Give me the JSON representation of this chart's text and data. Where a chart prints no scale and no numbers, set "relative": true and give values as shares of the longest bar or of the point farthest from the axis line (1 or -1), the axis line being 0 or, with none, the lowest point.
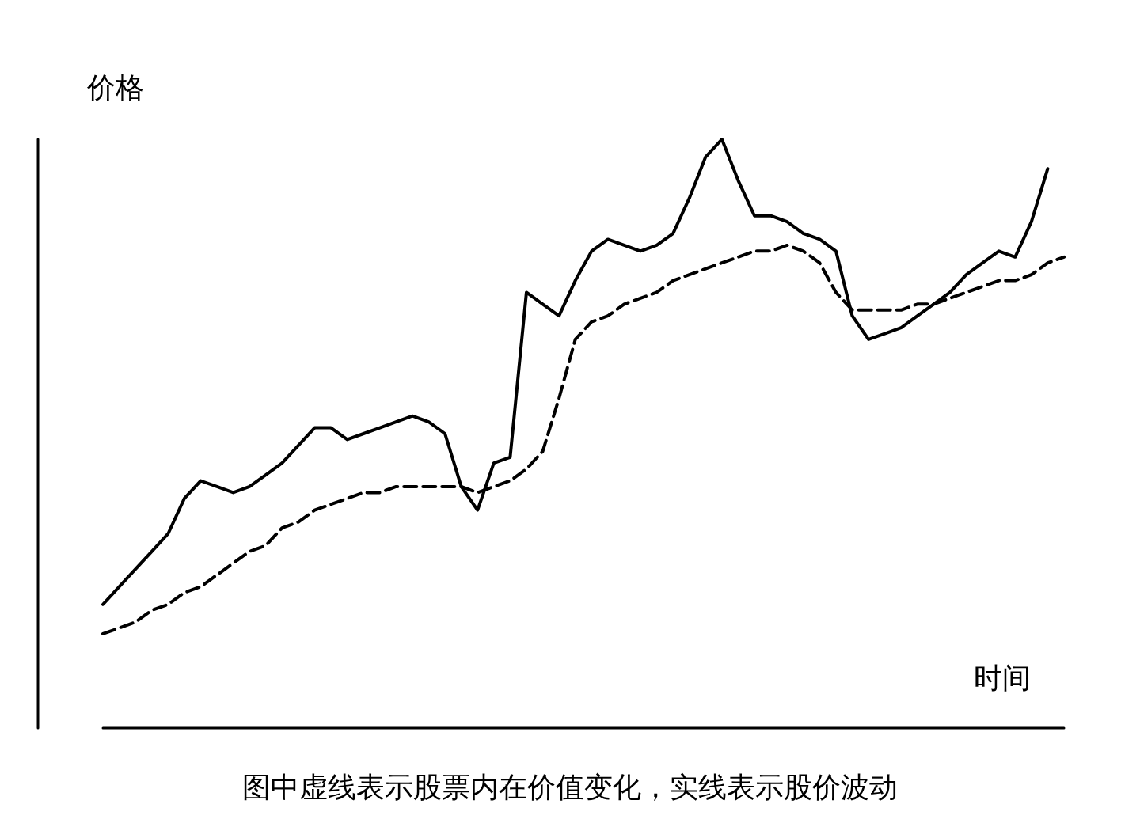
{
  "chart_data": {
    "type": "line",
    "relative": true,
    "ylabel": "价格",
    "xlabel": "时间",
    "annotations": [
      "图中虚线表示股票内在价值变化，实线表示股价波动"
    ],
    "grid": false,
    "marker": "none",
    "categories": [
      null,
      null,
      null,
      null,
      null,
      null,
      null,
      null,
      null,
      null,
      null,
      null,
      null,
      null,
      null,
      null,
      null,
      null,
      null,
      null,
      null,
      null,
      null,
      null,
      null,
      null,
      null,
      null,
      null,
      null,
      null,
      null,
      null,
      null,
      null,
      null,
      null,
      null,
      null,
      null,
      null,
      null,
      null,
      null,
      null,
      null,
      null,
      null,
      null,
      null,
      null,
      null,
      null,
      null,
      null,
      null,
      null,
      null,
      null,
      null
    ],
    "series": [
      {
        "color": "#000000",
        "line_style": "solid",
        "values": [
          0.21,
          0.24,
          0.27,
          0.3,
          0.33,
          0.39,
          0.42,
          0.41,
          0.4,
          0.41,
          0.43,
          0.45,
          0.48,
          0.51,
          0.51,
          0.49,
          0.5,
          0.51,
          0.52,
          0.53,
          0.52,
          0.5,
          0.41,
          0.37,
          0.45,
          0.46,
          0.74,
          0.72,
          0.7,
          0.76,
          0.81,
          0.83,
          0.82,
          0.81,
          0.82,
          0.84,
          0.9,
          0.97,
          1,
          0.93,
          0.87,
          0.87,
          0.86,
          0.84,
          0.83,
          0.81,
          0.7,
          0.66,
          0.67,
          0.68,
          0.7,
          0.72,
          0.74,
          0.77,
          0.79,
          0.81,
          0.8,
          0.86,
          0.95,
          null
        ]
      },
      {
        "color": "#000000",
        "line_style": "dashed",
        "values": [
          0.16,
          0.17,
          0.18,
          0.2,
          0.21,
          0.23,
          0.24,
          0.26,
          0.28,
          0.3,
          0.31,
          0.34,
          0.35,
          0.37,
          0.38,
          0.39,
          0.4,
          0.4,
          0.41,
          0.41,
          0.41,
          0.41,
          0.41,
          0.4,
          0.41,
          0.42,
          0.44,
          0.47,
          0.56,
          0.66,
          0.69,
          0.7,
          0.72,
          0.73,
          0.74,
          0.76,
          0.77,
          0.78,
          0.79,
          0.8,
          0.81,
          0.81,
          0.82,
          0.81,
          0.79,
          0.74,
          0.71,
          0.71,
          0.71,
          0.71,
          0.72,
          0.72,
          0.73,
          0.74,
          0.75,
          0.76,
          0.76,
          0.77,
          0.79,
          0.8
        ]
      }
    ]
  }
}
